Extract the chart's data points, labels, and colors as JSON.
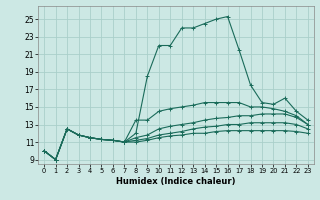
{
  "bg_color": "#cce8e4",
  "grid_color": "#aacfca",
  "line_color": "#1a6b5a",
  "xlabel": "Humidex (Indice chaleur)",
  "xlim": [
    -0.5,
    23.5
  ],
  "ylim": [
    8.5,
    26.5
  ],
  "xticks": [
    0,
    1,
    2,
    3,
    4,
    5,
    6,
    7,
    8,
    9,
    10,
    11,
    12,
    13,
    14,
    15,
    16,
    17,
    18,
    19,
    20,
    21,
    22,
    23
  ],
  "yticks": [
    9,
    11,
    13,
    15,
    17,
    19,
    21,
    23,
    25
  ],
  "series": [
    [
      10.0,
      9.0,
      12.5,
      11.8,
      11.5,
      11.3,
      11.2,
      11.0,
      12.0,
      18.5,
      22.0,
      22.0,
      24.0,
      24.0,
      24.5,
      25.0,
      25.3,
      21.5,
      17.5,
      15.5,
      15.3,
      16.0,
      14.5,
      13.5
    ],
    [
      10.0,
      9.0,
      12.5,
      11.8,
      11.5,
      11.3,
      11.2,
      11.0,
      13.5,
      13.5,
      14.5,
      14.8,
      15.0,
      15.2,
      15.5,
      15.5,
      15.5,
      15.5,
      15.0,
      15.0,
      14.8,
      14.5,
      14.0,
      13.0
    ],
    [
      10.0,
      9.0,
      12.5,
      11.8,
      11.5,
      11.3,
      11.2,
      11.0,
      11.5,
      11.8,
      12.5,
      12.8,
      13.0,
      13.2,
      13.5,
      13.7,
      13.8,
      14.0,
      14.0,
      14.2,
      14.2,
      14.2,
      13.8,
      13.0
    ],
    [
      10.0,
      9.0,
      12.5,
      11.8,
      11.5,
      11.3,
      11.2,
      11.0,
      11.2,
      11.4,
      11.8,
      12.0,
      12.2,
      12.5,
      12.7,
      12.8,
      13.0,
      13.0,
      13.2,
      13.2,
      13.2,
      13.2,
      13.0,
      12.5
    ],
    [
      10.0,
      9.0,
      12.5,
      11.8,
      11.5,
      11.3,
      11.2,
      11.0,
      11.0,
      11.2,
      11.5,
      11.7,
      11.8,
      12.0,
      12.0,
      12.2,
      12.3,
      12.3,
      12.3,
      12.3,
      12.3,
      12.3,
      12.2,
      12.0
    ]
  ]
}
